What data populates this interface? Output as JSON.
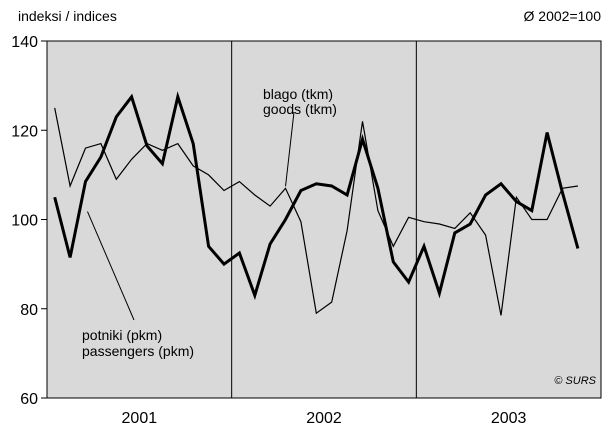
{
  "chart_data": {
    "type": "line",
    "ylabel": "indeksi / indices",
    "reference_note": "Ø 2002=100",
    "copyright": "© SURS",
    "ylim": [
      60,
      140
    ],
    "yticks": [
      60,
      80,
      100,
      120,
      140
    ],
    "year_labels": [
      "2001",
      "2002",
      "2003"
    ],
    "months_per_year": 12,
    "plot_background": "#d9d9d9",
    "series": [
      {
        "name": "goods",
        "label_lines": [
          "blago (tkm)",
          "goods (tkm)"
        ],
        "color": "#000000",
        "weight": "thin",
        "values": [
          125,
          107.5,
          116,
          117,
          109,
          113.5,
          117,
          115.5,
          117,
          112,
          110,
          106.5,
          108.5,
          105.5,
          103,
          107,
          99.5,
          79,
          81.5,
          97.5,
          122,
          102,
          94,
          100.5,
          99.5,
          99,
          98,
          101.5,
          96.5,
          78.5,
          105,
          100,
          100,
          107,
          107.5
        ]
      },
      {
        "name": "passengers",
        "label_lines": [
          "potniki (pkm)",
          "passengers (pkm)"
        ],
        "color": "#000000",
        "weight": "thick",
        "values": [
          105,
          91.5,
          108.5,
          114,
          123,
          127.5,
          116.5,
          112.5,
          127.5,
          117,
          94,
          90,
          92.5,
          83,
          94.5,
          100,
          106.5,
          108,
          107.5,
          105.5,
          118,
          107,
          90.5,
          86,
          94,
          83.5,
          97,
          99,
          105.5,
          108,
          104,
          102,
          119.5,
          106,
          93.5
        ]
      }
    ]
  }
}
